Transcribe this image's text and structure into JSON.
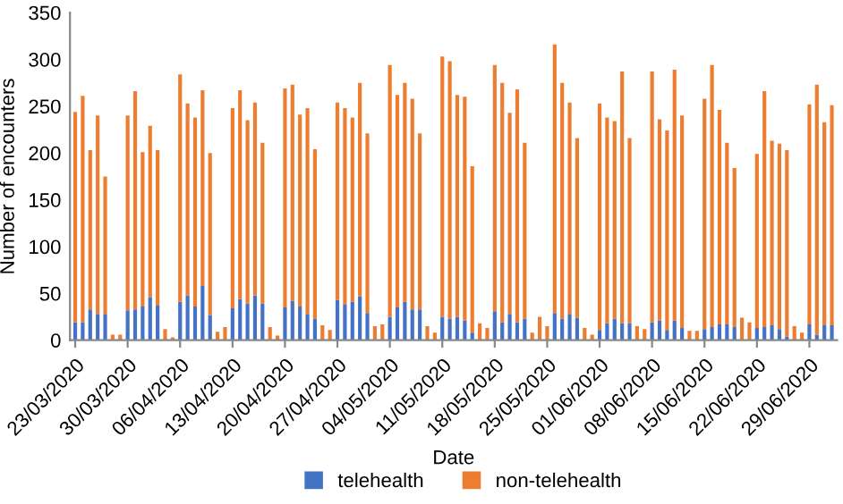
{
  "chart_data": {
    "type": "bar",
    "stacked": true,
    "xlabel": "Date",
    "ylabel": "Number of encounters",
    "categories": [
      "23/03/2020",
      null,
      null,
      null,
      null,
      null,
      null,
      "30/03/2020",
      null,
      null,
      null,
      null,
      null,
      null,
      "06/04/2020",
      null,
      null,
      null,
      null,
      null,
      null,
      "13/04/2020",
      null,
      null,
      null,
      null,
      null,
      null,
      "20/04/2020",
      null,
      null,
      null,
      null,
      null,
      null,
      "27/04/2020",
      null,
      null,
      null,
      null,
      null,
      null,
      "04/05/2020",
      null,
      null,
      null,
      null,
      null,
      null,
      "11/05/2020",
      null,
      null,
      null,
      null,
      null,
      null,
      "18/05/2020",
      null,
      null,
      null,
      null,
      null,
      null,
      "25/05/2020",
      null,
      null,
      null,
      null,
      null,
      null,
      "01/06/2020",
      null,
      null,
      null,
      null,
      null,
      null,
      "08/06/2020",
      null,
      null,
      null,
      null,
      null,
      null,
      "15/06/2020",
      null,
      null,
      null,
      null,
      null,
      null,
      "22/06/2020",
      null,
      null,
      null,
      null,
      null,
      null,
      "29/06/2020",
      null,
      null,
      null
    ],
    "series": [
      {
        "name": "telehealth",
        "color": "#4472c4",
        "values": [
          19,
          19,
          33,
          28,
          28,
          0,
          0,
          32,
          33,
          36,
          46,
          37,
          0,
          0,
          41,
          48,
          36,
          58,
          27,
          0,
          0,
          34,
          44,
          39,
          48,
          39,
          0,
          0,
          35,
          42,
          36,
          28,
          23,
          0,
          0,
          43,
          38,
          41,
          47,
          29,
          0,
          0,
          25,
          35,
          41,
          33,
          33,
          0,
          0,
          25,
          23,
          25,
          21,
          8,
          0,
          0,
          31,
          19,
          28,
          19,
          23,
          0,
          0,
          0,
          29,
          23,
          28,
          24,
          0,
          0,
          11,
          18,
          23,
          18,
          18,
          0,
          0,
          19,
          21,
          11,
          21,
          13,
          0,
          0,
          12,
          14,
          17,
          17,
          14,
          0,
          0,
          13,
          14,
          16,
          12,
          4,
          0,
          0,
          17,
          6,
          16,
          16
        ]
      },
      {
        "name": "non-telehealth",
        "color": "#ed7d31",
        "values": [
          225,
          242,
          170,
          212,
          147,
          6,
          6,
          208,
          233,
          165,
          183,
          166,
          12,
          3,
          243,
          205,
          202,
          209,
          173,
          9,
          14,
          214,
          223,
          196,
          206,
          172,
          14,
          5,
          234,
          231,
          205,
          220,
          181,
          16,
          11,
          211,
          210,
          197,
          228,
          192,
          15,
          17,
          269,
          227,
          234,
          225,
          188,
          15,
          8,
          278,
          275,
          237,
          239,
          178,
          18,
          13,
          263,
          256,
          215,
          249,
          188,
          8,
          25,
          15,
          287,
          252,
          226,
          192,
          13,
          6,
          242,
          220,
          211,
          269,
          198,
          15,
          12,
          268,
          215,
          213,
          268,
          227,
          10,
          10,
          246,
          280,
          229,
          194,
          170,
          24,
          19,
          186,
          252,
          197,
          198,
          199,
          15,
          8,
          235,
          267,
          217,
          235
        ]
      }
    ],
    "ylim": [
      0,
      350
    ],
    "yticks": [
      0,
      50,
      100,
      150,
      200,
      250,
      300,
      350
    ],
    "grid": false,
    "legend": "bottom"
  }
}
